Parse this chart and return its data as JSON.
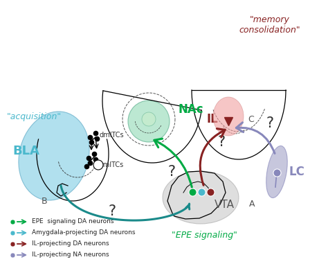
{
  "bg_color": "#ffffff",
  "legend": [
    {
      "color": "#00aa44",
      "label": "EPE  signaling DA neurons"
    },
    {
      "color": "#4ab8cc",
      "label": "Amygdala-projecting DA neurons"
    },
    {
      "color": "#882222",
      "label": "IL-projecting DA neurons"
    },
    {
      "color": "#8888bb",
      "label": "IL-projecting NA neurons"
    }
  ]
}
